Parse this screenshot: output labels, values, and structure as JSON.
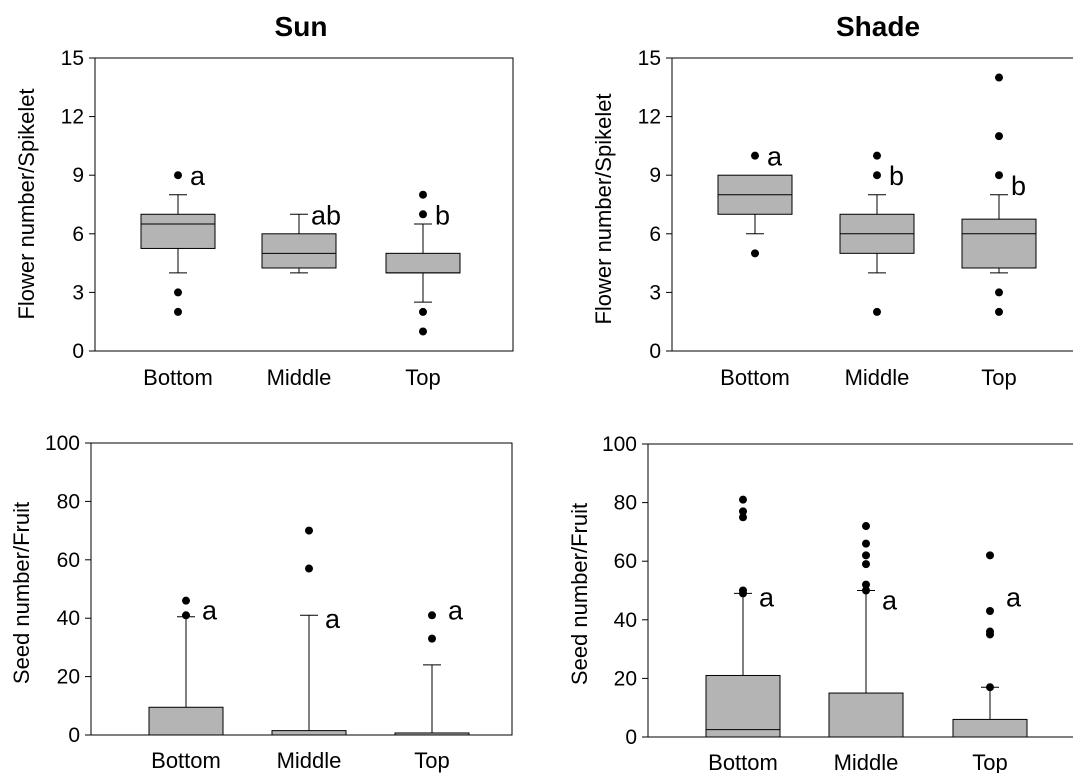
{
  "chart_data": [
    {
      "type": "box",
      "panel": "flower-sun",
      "title": "Sun",
      "ylabel": "Flower number/Spikelet",
      "ylim": [
        0,
        15
      ],
      "yticks": [
        0,
        3,
        6,
        9,
        12,
        15
      ],
      "categories": [
        "Bottom",
        "Middle",
        "Top"
      ],
      "boxes": [
        {
          "category": "Bottom",
          "q1": 5.25,
          "median": 6.5,
          "q3": 7,
          "whisker_low": 4,
          "whisker_high": 8,
          "outliers": [
            9,
            3,
            2
          ],
          "letter": "a"
        },
        {
          "category": "Middle",
          "q1": 4.25,
          "median": 5,
          "q3": 6,
          "whisker_low": 4,
          "whisker_high": 7,
          "outliers": [],
          "letter": "ab"
        },
        {
          "category": "Top",
          "q1": 4,
          "median": 4,
          "q3": 5,
          "whisker_low": 2.5,
          "whisker_high": 6.5,
          "outliers": [
            8,
            7,
            2,
            1
          ],
          "letter": "b"
        }
      ]
    },
    {
      "type": "box",
      "panel": "flower-shade",
      "title": "Shade",
      "ylabel": "Flower number/Spikelet",
      "ylim": [
        0,
        15
      ],
      "yticks": [
        0,
        3,
        6,
        9,
        12,
        15
      ],
      "categories": [
        "Bottom",
        "Middle",
        "Top"
      ],
      "boxes": [
        {
          "category": "Bottom",
          "q1": 7,
          "median": 8,
          "q3": 9,
          "whisker_low": 6,
          "whisker_high": 9,
          "outliers": [
            10,
            5
          ],
          "letter": "a"
        },
        {
          "category": "Middle",
          "q1": 5,
          "median": 6,
          "q3": 7,
          "whisker_low": 4,
          "whisker_high": 8,
          "outliers": [
            10,
            9,
            2
          ],
          "letter": "b"
        },
        {
          "category": "Top",
          "q1": 4.25,
          "median": 6,
          "q3": 6.75,
          "whisker_low": 4,
          "whisker_high": 8,
          "outliers": [
            14,
            11,
            9,
            3,
            2
          ],
          "letter": "b"
        }
      ]
    },
    {
      "type": "box",
      "panel": "seed-sun",
      "title": "",
      "ylabel": "Seed number/Fruit",
      "ylim": [
        0,
        100
      ],
      "yticks": [
        0,
        20,
        40,
        60,
        80,
        100
      ],
      "categories": [
        "Bottom",
        "Middle",
        "Top"
      ],
      "boxes": [
        {
          "category": "Bottom",
          "q1": 0,
          "median": 0,
          "q3": 9.5,
          "whisker_low": 0,
          "whisker_high": 40.5,
          "outliers": [
            46,
            41
          ],
          "letter": "a"
        },
        {
          "category": "Middle",
          "q1": 0,
          "median": 0,
          "q3": 1.5,
          "whisker_low": 0,
          "whisker_high": 41,
          "outliers": [
            70,
            57
          ],
          "letter": "a"
        },
        {
          "category": "Top",
          "q1": 0,
          "median": 0,
          "q3": 0.7,
          "whisker_low": 0,
          "whisker_high": 24,
          "outliers": [
            41,
            33
          ],
          "letter": "a"
        }
      ]
    },
    {
      "type": "box",
      "panel": "seed-shade",
      "title": "",
      "ylabel": "Seed number/Fruit",
      "ylim": [
        0,
        100
      ],
      "yticks": [
        0,
        20,
        40,
        60,
        80,
        100
      ],
      "categories": [
        "Bottom",
        "Middle",
        "Top"
      ],
      "boxes": [
        {
          "category": "Bottom",
          "q1": 0,
          "median": 2.5,
          "q3": 21,
          "whisker_low": 0,
          "whisker_high": 49,
          "outliers": [
            81,
            77,
            75,
            50,
            49
          ],
          "letter": "a"
        },
        {
          "category": "Middle",
          "q1": 0,
          "median": 0,
          "q3": 15,
          "whisker_low": 0,
          "whisker_high": 50,
          "outliers": [
            72,
            66,
            62,
            59,
            52,
            50
          ],
          "letter": "a"
        },
        {
          "category": "Top",
          "q1": 0,
          "median": 0,
          "q3": 6,
          "whisker_low": 0,
          "whisker_high": 17,
          "outliers": [
            62,
            43,
            36,
            35,
            17
          ],
          "letter": "a"
        }
      ]
    }
  ],
  "colors": {
    "box_fill": "#b4b4b4",
    "line": "#000000"
  }
}
